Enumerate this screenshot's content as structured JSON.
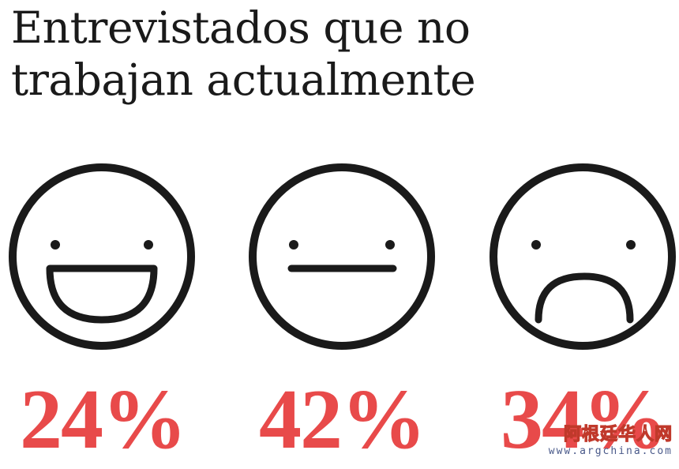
{
  "title_lines": [
    "Entrevistados que no",
    "trabajan actualmente"
  ],
  "chart_data": {
    "type": "pictogram",
    "title": "Entrevistados que no trabajan actualmente",
    "categories": [
      "happy",
      "neutral",
      "sad"
    ],
    "values": [
      24,
      42,
      34
    ],
    "labels": [
      "24%",
      "42%",
      "34%"
    ],
    "unit": "%",
    "icons": [
      "happy-face-icon",
      "neutral-face-icon",
      "sad-face-icon"
    ],
    "colors": {
      "value_text": "#e84a4a",
      "face_stroke": "#1a1a1a"
    }
  },
  "watermark": {
    "name": "阿根廷华人网",
    "url": "www.argchina.com"
  }
}
